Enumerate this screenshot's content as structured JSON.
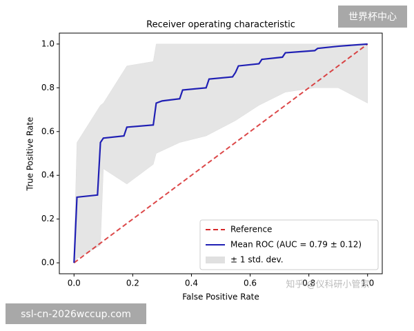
{
  "chart_data": {
    "type": "line",
    "title": "Receiver operating characteristic",
    "x_label": "False Positive Rate",
    "y_label": "True Positive Rate",
    "xlim": [
      -0.05,
      1.05
    ],
    "ylim": [
      -0.05,
      1.05
    ],
    "xticks": [
      {
        "value": 0,
        "label": "0.0"
      },
      0.2,
      0.4,
      0.6,
      0.8,
      {
        "value": 1,
        "label": "1.0"
      }
    ],
    "yticks": [
      {
        "value": 0,
        "label": "0.0"
      },
      0.2,
      0.4,
      0.6,
      0.8,
      {
        "value": 1,
        "label": "1.0"
      }
    ],
    "legend": "lower right",
    "band": {
      "name": "± 1 std. dev.",
      "color": "#cccccc",
      "x": [
        0,
        0.01,
        0.09,
        0.1,
        0.18,
        0.27,
        0.28,
        0.36,
        0.45,
        0.55,
        0.63,
        0.72,
        0.82,
        0.9,
        1.0
      ],
      "upper": [
        0.05,
        0.55,
        0.72,
        0.73,
        0.9,
        0.92,
        1,
        1,
        1,
        1,
        1,
        1,
        1,
        1,
        1
      ],
      "lower": [
        0,
        0.02,
        0.08,
        0.43,
        0.36,
        0.45,
        0.5,
        0.55,
        0.58,
        0.65,
        0.72,
        0.78,
        0.8,
        0.8,
        0.73
      ]
    },
    "series": [
      {
        "name": "Reference",
        "color": "#d62728",
        "dashed": true,
        "x": [
          0,
          1
        ],
        "values": [
          0,
          1
        ]
      },
      {
        "name": "Mean ROC (AUC = 0.79 ± 0.12)",
        "color": "#1f1fb4",
        "dashed": false,
        "x": [
          0,
          0.01,
          0.08,
          0.09,
          0.1,
          0.17,
          0.18,
          0.27,
          0.28,
          0.3,
          0.36,
          0.37,
          0.45,
          0.46,
          0.54,
          0.55,
          0.56,
          0.63,
          0.64,
          0.71,
          0.72,
          0.82,
          0.83,
          0.9,
          1.0
        ],
        "values": [
          0,
          0.3,
          0.31,
          0.55,
          0.57,
          0.58,
          0.62,
          0.63,
          0.73,
          0.74,
          0.75,
          0.79,
          0.8,
          0.84,
          0.85,
          0.87,
          0.9,
          0.91,
          0.93,
          0.94,
          0.96,
          0.97,
          0.98,
          0.99,
          1.0
        ]
      }
    ],
    "watermarks": [
      "世界杯中心",
      "ssl-cn-2026wccup.com",
      "知乎 @仪科研小管家"
    ]
  }
}
